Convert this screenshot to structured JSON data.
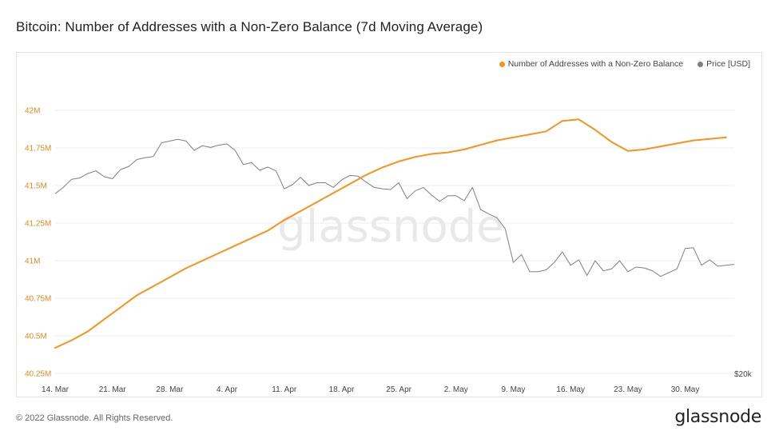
{
  "title": "Bitcoin: Number of Addresses with a Non-Zero Balance (7d Moving Average)",
  "footer": {
    "copyright": "© 2022 Glassnode. All Rights Reserved.",
    "logo": "glassnode"
  },
  "watermark": "glassnode",
  "colors": {
    "addresses": "#f7931a",
    "price": "#7f7f7f",
    "grid": "#ececec"
  },
  "chart_data": {
    "type": "line",
    "title": "Bitcoin: Number of Addresses with a Non-Zero Balance (7d Moving Average)",
    "legend_placement": "top-right",
    "grid": true,
    "x_range": [
      "2022-03-14",
      "2022-06-05"
    ],
    "x_ticks": [
      "14. Mar",
      "21. Mar",
      "28. Mar",
      "4. Apr",
      "11. Apr",
      "18. Apr",
      "25. Apr",
      "2. May",
      "9. May",
      "16. May",
      "23. May",
      "30. May"
    ],
    "y_left": {
      "ticks": [
        "40.25M",
        "40.5M",
        "40.75M",
        "41M",
        "41.25M",
        "41.5M",
        "41.75M",
        "42M"
      ],
      "range": [
        40.25,
        42.0
      ],
      "unit": "M"
    },
    "y_right": {
      "ticks": [
        "$20k"
      ],
      "log_scale": true
    },
    "series": [
      {
        "name": "Number of Addresses with a Non-Zero Balance",
        "axis": "left",
        "color": "#f7931a",
        "x": [
          "2022-03-14",
          "2022-03-16",
          "2022-03-18",
          "2022-03-20",
          "2022-03-22",
          "2022-03-24",
          "2022-03-26",
          "2022-03-28",
          "2022-03-30",
          "2022-04-01",
          "2022-04-03",
          "2022-04-05",
          "2022-04-07",
          "2022-04-09",
          "2022-04-11",
          "2022-04-13",
          "2022-04-15",
          "2022-04-17",
          "2022-04-19",
          "2022-04-21",
          "2022-04-23",
          "2022-04-25",
          "2022-04-27",
          "2022-04-29",
          "2022-05-01",
          "2022-05-03",
          "2022-05-05",
          "2022-05-07",
          "2022-05-09",
          "2022-05-11",
          "2022-05-13",
          "2022-05-15",
          "2022-05-17",
          "2022-05-19",
          "2022-05-21",
          "2022-05-23",
          "2022-05-25",
          "2022-05-27",
          "2022-05-29",
          "2022-05-31",
          "2022-06-02",
          "2022-06-04"
        ],
        "values": [
          40.42,
          40.47,
          40.53,
          40.61,
          40.69,
          40.77,
          40.83,
          40.89,
          40.95,
          41.0,
          41.05,
          41.1,
          41.15,
          41.2,
          41.27,
          41.33,
          41.39,
          41.45,
          41.51,
          41.57,
          41.62,
          41.66,
          41.69,
          41.71,
          41.72,
          41.74,
          41.77,
          41.8,
          41.82,
          41.84,
          41.86,
          41.93,
          41.94,
          41.87,
          41.79,
          41.73,
          41.74,
          41.76,
          41.78,
          41.8,
          41.81,
          41.82
        ]
      },
      {
        "name": "Price [USD]",
        "axis": "right",
        "color": "#7f7f7f",
        "x": [
          "2022-03-14",
          "2022-03-15",
          "2022-03-16",
          "2022-03-17",
          "2022-03-18",
          "2022-03-19",
          "2022-03-20",
          "2022-03-21",
          "2022-03-22",
          "2022-03-23",
          "2022-03-24",
          "2022-03-25",
          "2022-03-26",
          "2022-03-27",
          "2022-03-28",
          "2022-03-29",
          "2022-03-30",
          "2022-03-31",
          "2022-04-01",
          "2022-04-02",
          "2022-04-03",
          "2022-04-04",
          "2022-04-05",
          "2022-04-06",
          "2022-04-07",
          "2022-04-08",
          "2022-04-09",
          "2022-04-10",
          "2022-04-11",
          "2022-04-12",
          "2022-04-13",
          "2022-04-14",
          "2022-04-15",
          "2022-04-16",
          "2022-04-17",
          "2022-04-18",
          "2022-04-19",
          "2022-04-20",
          "2022-04-21",
          "2022-04-22",
          "2022-04-23",
          "2022-04-24",
          "2022-04-25",
          "2022-04-26",
          "2022-04-27",
          "2022-04-28",
          "2022-04-29",
          "2022-04-30",
          "2022-05-01",
          "2022-05-02",
          "2022-05-03",
          "2022-05-04",
          "2022-05-05",
          "2022-05-06",
          "2022-05-07",
          "2022-05-08",
          "2022-05-09",
          "2022-05-10",
          "2022-05-11",
          "2022-05-12",
          "2022-05-13",
          "2022-05-14",
          "2022-05-15",
          "2022-05-16",
          "2022-05-17",
          "2022-05-18",
          "2022-05-19",
          "2022-05-20",
          "2022-05-21",
          "2022-05-22",
          "2022-05-23",
          "2022-05-24",
          "2022-05-25",
          "2022-05-26",
          "2022-05-27",
          "2022-05-28",
          "2022-05-29",
          "2022-05-30",
          "2022-05-31",
          "2022-06-01",
          "2022-06-02",
          "2022-06-03",
          "2022-06-04",
          "2022-06-05"
        ],
        "values": [
          38800,
          39700,
          40900,
          41100,
          41800,
          42200,
          41300,
          41000,
          42400,
          42900,
          44000,
          44300,
          44500,
          46800,
          47100,
          47400,
          47100,
          45500,
          46300,
          46000,
          46400,
          46600,
          45500,
          43200,
          43500,
          42300,
          42800,
          42200,
          39500,
          40100,
          41200,
          40000,
          40400,
          40400,
          39700,
          40800,
          41500,
          41400,
          40500,
          39700,
          39500,
          39400,
          40400,
          38100,
          39200,
          39700,
          38600,
          37700,
          38500,
          38500,
          37800,
          39700,
          36600,
          36000,
          35500,
          34100,
          30100,
          31000,
          29100,
          29100,
          29300,
          30100,
          31300,
          29800,
          30400,
          28700,
          30300,
          29200,
          29400,
          30300,
          29100,
          29600,
          29500,
          29200,
          28600,
          29000,
          29400,
          31700,
          31800,
          29800,
          30400,
          29700,
          29800,
          29900
        ]
      }
    ]
  }
}
